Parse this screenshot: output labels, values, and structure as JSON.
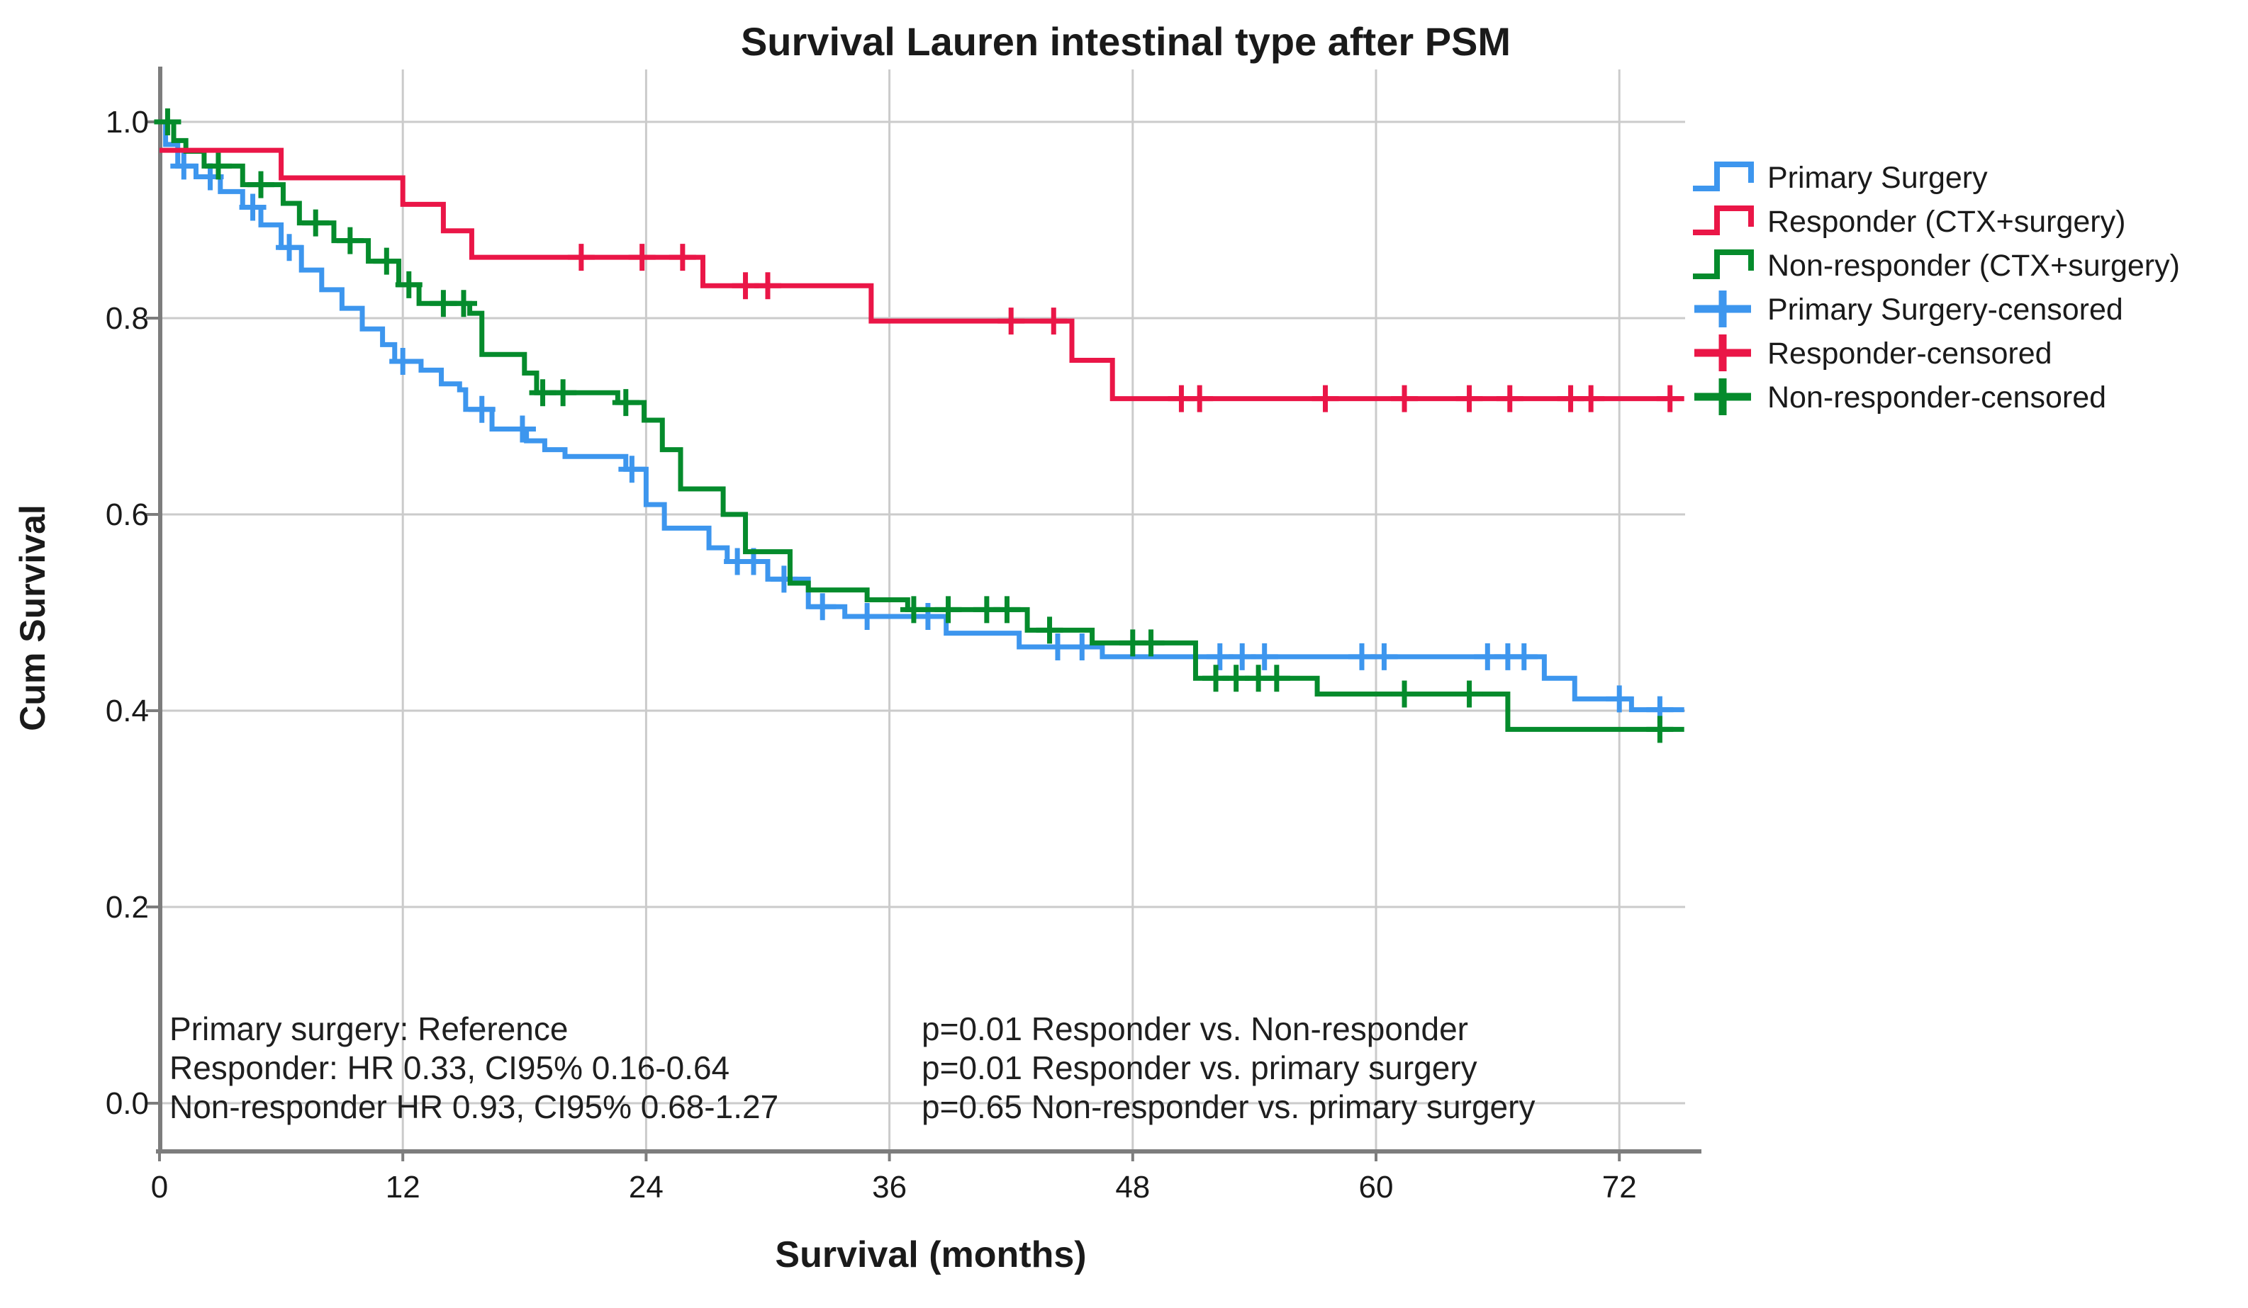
{
  "page": {
    "background": "#ffffff"
  },
  "chart_data": {
    "type": "line",
    "subtype": "kaplan_meier_step",
    "title": "Survival Lauren intestinal type after PSM",
    "xlabel": "Survival (months)",
    "ylabel": "Cum Survival",
    "xlim": [
      0,
      76
    ],
    "ylim": [
      0.0,
      1.05
    ],
    "grid": true,
    "legend_position": "right",
    "x_ticks": [
      {
        "v": 0,
        "label": "0"
      },
      {
        "v": 12,
        "label": "12"
      },
      {
        "v": 24,
        "label": "24"
      },
      {
        "v": 36,
        "label": "36"
      },
      {
        "v": 48,
        "label": "48"
      },
      {
        "v": 60,
        "label": "60"
      },
      {
        "v": 72,
        "label": "72"
      }
    ],
    "y_ticks": [
      {
        "v": 0.0,
        "label": "0.0"
      },
      {
        "v": 0.2,
        "label": "0.2"
      },
      {
        "v": 0.4,
        "label": "0.4"
      },
      {
        "v": 0.6,
        "label": "0.6"
      },
      {
        "v": 0.8,
        "label": "0.8"
      },
      {
        "v": 1.0,
        "label": "1.0"
      }
    ],
    "colors": {
      "primary_surgery": "#3d96ee",
      "responder": "#ea1647",
      "non_responder": "#058b2c",
      "gridline": "#cbcbcb",
      "axis": "#7d7d7d"
    },
    "series": [
      {
        "name": "Primary Surgery",
        "color": "#3d96ee",
        "end": 75.2,
        "points": [
          [
            0,
            1.0
          ],
          [
            0.3,
            0.977
          ],
          [
            0.9,
            0.955
          ],
          [
            1.8,
            0.944
          ],
          [
            3.0,
            0.929
          ],
          [
            4.1,
            0.913
          ],
          [
            5.0,
            0.895
          ],
          [
            6.0,
            0.872
          ],
          [
            7.0,
            0.849
          ],
          [
            8.0,
            0.829
          ],
          [
            9.0,
            0.81
          ],
          [
            10.0,
            0.789
          ],
          [
            11.0,
            0.773
          ],
          [
            11.6,
            0.756
          ],
          [
            12.9,
            0.747
          ],
          [
            13.9,
            0.733
          ],
          [
            14.8,
            0.727
          ],
          [
            15.1,
            0.707
          ],
          [
            16.4,
            0.687
          ],
          [
            18.1,
            0.675
          ],
          [
            19.0,
            0.666
          ],
          [
            20.0,
            0.659
          ],
          [
            23.0,
            0.646
          ],
          [
            24.0,
            0.61
          ],
          [
            24.9,
            0.586
          ],
          [
            27.1,
            0.566
          ],
          [
            28.0,
            0.552
          ],
          [
            30.0,
            0.534
          ],
          [
            32.0,
            0.506
          ],
          [
            33.8,
            0.496
          ],
          [
            38.8,
            0.479
          ],
          [
            42.4,
            0.465
          ],
          [
            46.5,
            0.455
          ],
          [
            68.3,
            0.433
          ],
          [
            69.8,
            0.412
          ],
          [
            72.6,
            0.401
          ]
        ],
        "censors": [
          1.2,
          2.5,
          4.6,
          6.4,
          12.0,
          15.9,
          17.9,
          23.3,
          28.5,
          29.3,
          30.8,
          32.7,
          34.9,
          37.9,
          44.3,
          45.5,
          52.3,
          53.4,
          54.5,
          59.3,
          60.4,
          65.5,
          66.5,
          67.3,
          72.0,
          74.0
        ]
      },
      {
        "name": "Non-responder (CTX+surgery)",
        "color": "#058b2c",
        "end": 75.2,
        "points": [
          [
            0,
            1.0
          ],
          [
            0.7,
            0.981
          ],
          [
            1.3,
            0.97
          ],
          [
            2.2,
            0.955
          ],
          [
            4.1,
            0.936
          ],
          [
            6.1,
            0.917
          ],
          [
            6.9,
            0.897
          ],
          [
            8.6,
            0.879
          ],
          [
            10.3,
            0.858
          ],
          [
            11.8,
            0.834
          ],
          [
            12.8,
            0.815
          ],
          [
            15.3,
            0.805
          ],
          [
            15.9,
            0.763
          ],
          [
            18.0,
            0.744
          ],
          [
            18.6,
            0.724
          ],
          [
            22.6,
            0.714
          ],
          [
            23.9,
            0.696
          ],
          [
            24.8,
            0.666
          ],
          [
            25.7,
            0.626
          ],
          [
            27.8,
            0.6
          ],
          [
            28.9,
            0.562
          ],
          [
            31.1,
            0.53
          ],
          [
            32.0,
            0.523
          ],
          [
            34.9,
            0.513
          ],
          [
            36.9,
            0.503
          ],
          [
            42.8,
            0.482
          ],
          [
            46.0,
            0.469
          ],
          [
            51.1,
            0.433
          ],
          [
            57.1,
            0.417
          ],
          [
            66.5,
            0.381
          ]
        ],
        "censors": [
          0.4,
          2.9,
          5.0,
          7.7,
          9.4,
          11.2,
          12.3,
          14.0,
          15.0,
          18.9,
          19.9,
          23.0,
          37.2,
          38.9,
          40.8,
          41.8,
          43.9,
          48.0,
          48.9,
          52.1,
          53.1,
          54.2,
          55.1,
          61.4,
          64.6,
          74.0
        ]
      },
      {
        "name": "Responder (CTX+surgery)",
        "color": "#ea1647",
        "end": 75.2,
        "points": [
          [
            0,
            0.971
          ],
          [
            6.0,
            0.943
          ],
          [
            12.0,
            0.916
          ],
          [
            14.0,
            0.889
          ],
          [
            15.4,
            0.862
          ],
          [
            26.8,
            0.833
          ],
          [
            35.1,
            0.797
          ],
          [
            45.0,
            0.757
          ],
          [
            47.0,
            0.718
          ]
        ],
        "censors": [
          20.8,
          23.8,
          25.8,
          28.9,
          30.0,
          42.0,
          44.1,
          50.4,
          51.3,
          57.5,
          61.4,
          64.6,
          66.6,
          69.6,
          70.6,
          74.5
        ]
      }
    ],
    "legend": [
      {
        "label": "Primary Surgery",
        "color": "#3d96ee",
        "glyph": "step"
      },
      {
        "label": "Responder (CTX+surgery)",
        "color": "#ea1647",
        "glyph": "step"
      },
      {
        "label": "Non-responder (CTX+surgery)",
        "color": "#058b2c",
        "glyph": "step"
      },
      {
        "label": "Primary Surgery-censored",
        "color": "#3d96ee",
        "glyph": "plus"
      },
      {
        "label": "Responder-censored",
        "color": "#ea1647",
        "glyph": "plus"
      },
      {
        "label": "Non-responder-censored",
        "color": "#058b2c",
        "glyph": "plus"
      }
    ],
    "annotations": {
      "left": [
        "Primary surgery: Reference",
        "Responder: HR 0.33, CI95% 0.16-0.64",
        "Non-responder HR 0.93, CI95% 0.68-1.27"
      ],
      "right": [
        "p=0.01 Responder vs. Non-responder",
        "p=0.01 Responder vs. primary surgery",
        "p=0.65 Non-responder vs. primary surgery"
      ]
    }
  }
}
